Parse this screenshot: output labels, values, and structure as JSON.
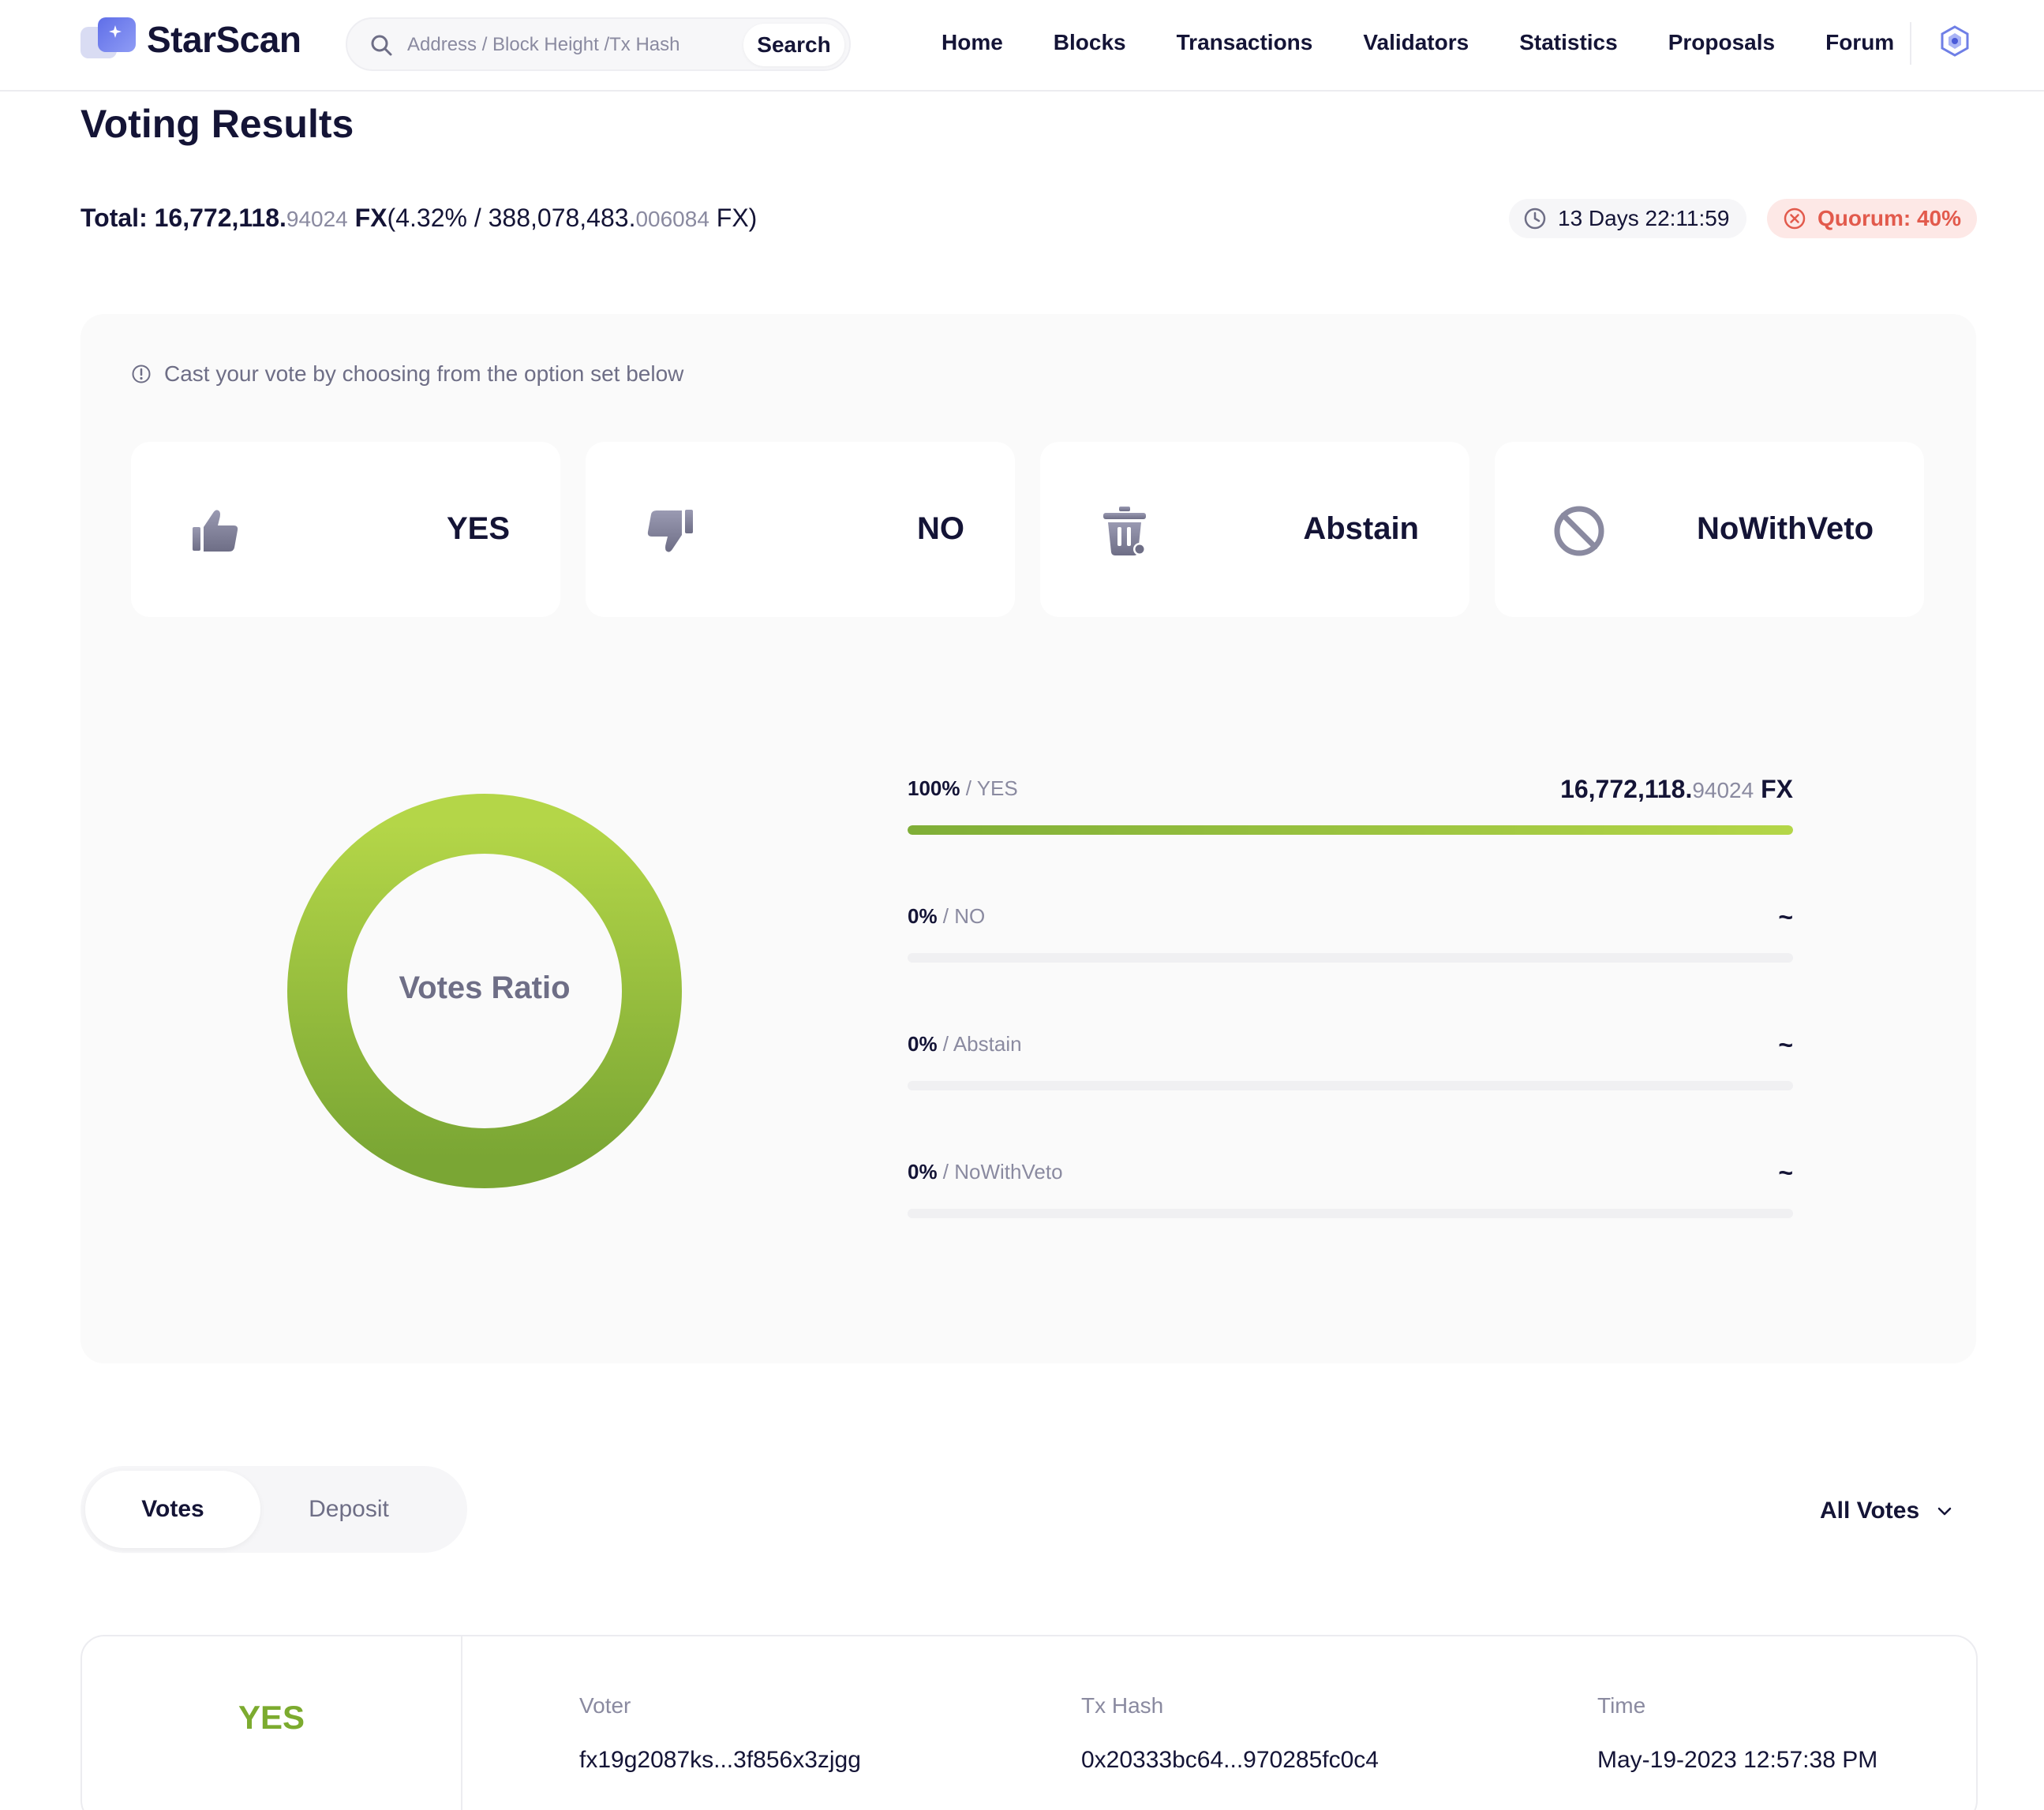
{
  "header": {
    "brand": "StarScan",
    "search": {
      "placeholder": "Address / Block Height /Tx Hash",
      "button": "Search"
    },
    "nav": [
      "Home",
      "Blocks",
      "Transactions",
      "Validators",
      "Statistics",
      "Proposals",
      "Forum"
    ]
  },
  "page": {
    "title": "Voting Results",
    "total": {
      "label": "Total: ",
      "amount_int": "16,772,118.",
      "amount_dec": "94024",
      "unit": " FX",
      "pct_open": "(4.32% / 388,078,483.",
      "supply_dec": "006084",
      "close": " FX)"
    },
    "timer": "13 Days 22:11:59",
    "quorum": "Quorum: 40%"
  },
  "panel": {
    "hint": "Cast your vote by choosing from the option set below",
    "options": [
      {
        "label": "YES",
        "icon": "thumbs-up-icon"
      },
      {
        "label": "NO",
        "icon": "thumbs-down-icon"
      },
      {
        "label": "Abstain",
        "icon": "trash-icon"
      },
      {
        "label": "NoWithVeto",
        "icon": "prohibited-icon"
      }
    ],
    "donut_label": "Votes Ratio",
    "results": [
      {
        "pct": "100%",
        "name": "YES",
        "amount_int": "16,772,118.",
        "amount_dec": "94024",
        "unit": " FX",
        "amount": "",
        "fraction": 1.0
      },
      {
        "pct": "0%",
        "name": "NO",
        "amount_int": "",
        "amount_dec": "",
        "unit": "",
        "amount": "~",
        "fraction": 0
      },
      {
        "pct": "0%",
        "name": "Abstain",
        "amount_int": "",
        "amount_dec": "",
        "unit": "",
        "amount": "~",
        "fraction": 0
      },
      {
        "pct": "0%",
        "name": "NoWithVeto",
        "amount_int": "",
        "amount_dec": "",
        "unit": "",
        "amount": "~",
        "fraction": 0
      }
    ]
  },
  "chart_data": {
    "type": "pie",
    "categories": [
      "YES",
      "NO",
      "Abstain",
      "NoWithVeto"
    ],
    "values": [
      100,
      0,
      0,
      0
    ],
    "title": "Votes Ratio"
  },
  "tabs": {
    "active": "Votes",
    "inactive": "Deposit"
  },
  "filter": "All Votes",
  "record": {
    "option": "YES",
    "voter_label": "Voter",
    "voter": "fx19g2087ks...3f856x3zjgg",
    "hash_label": "Tx Hash",
    "hash": "0x20333bc64...970285fc0c4",
    "time_label": "Time",
    "time": "May-19-2023 12:57:38 PM"
  },
  "colors": {
    "accent_green": "#7cab2f",
    "quorum_red": "#e25a4c",
    "text_dark": "#141436"
  }
}
